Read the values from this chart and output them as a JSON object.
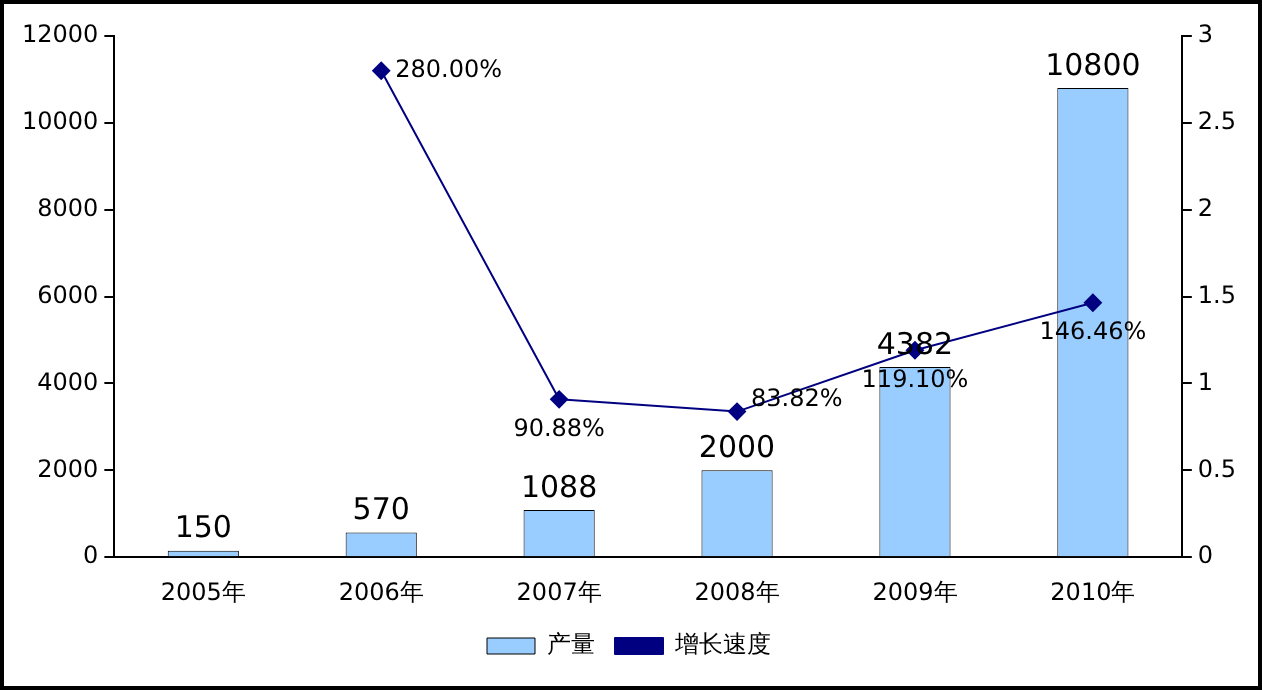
{
  "chart_data": {
    "type": "bar",
    "categories": [
      "2005年",
      "2006年",
      "2007年",
      "2008年",
      "2009年",
      "2010年"
    ],
    "series": [
      {
        "name": "产量",
        "color": "#99ccff",
        "values": [
          150,
          570,
          1088,
          2000,
          4382,
          10800
        ],
        "value_labels": [
          "150",
          "570",
          "1088",
          "2000",
          "4382",
          "10800"
        ]
      },
      {
        "name": "增长速度",
        "type": "line",
        "axis": "y2",
        "color": "#000080",
        "values": [
          null,
          2.8,
          0.9088,
          0.8382,
          1.191,
          1.4646
        ],
        "value_labels": [
          null,
          "280.00%",
          "90.88%",
          "83.82%",
          "119.10%",
          "146.46%"
        ]
      }
    ],
    "ylim": [
      0,
      12000
    ],
    "yticks": [
      0,
      2000,
      4000,
      6000,
      8000,
      10000,
      12000
    ],
    "y2lim": [
      0,
      3
    ],
    "y2ticks": [
      0,
      0.5,
      1,
      1.5,
      2,
      2.5,
      3
    ],
    "grid": false,
    "legend": "bottom",
    "marker": "diamond",
    "line_style": "solid"
  }
}
